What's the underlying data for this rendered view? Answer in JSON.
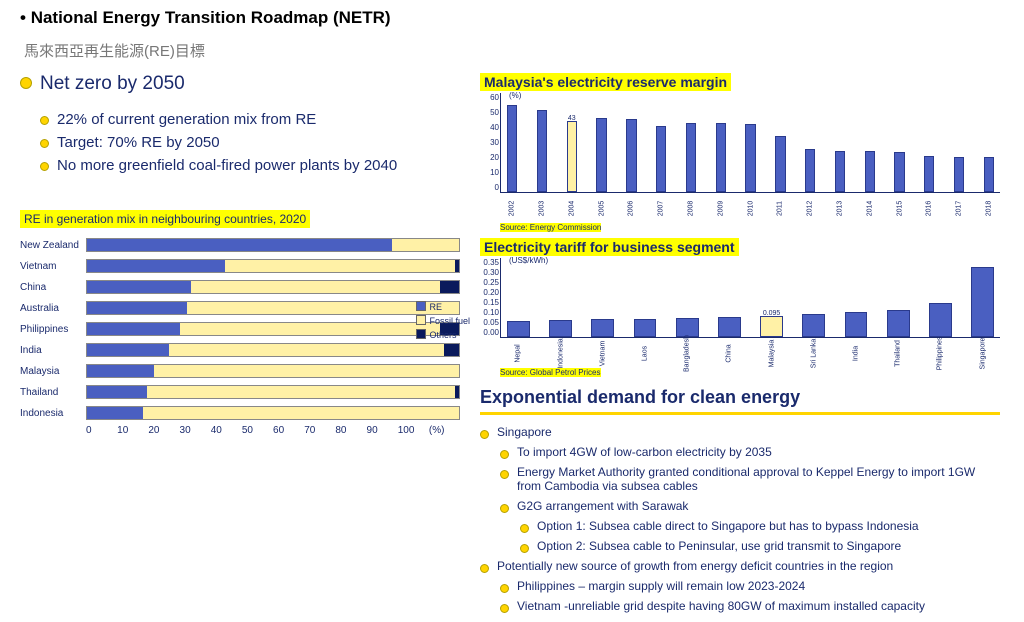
{
  "title": "National Energy Transition Roadmap (NETR)",
  "subtitle": "馬來西亞再生能源(RE)目標",
  "netzero": {
    "heading": "Net zero by 2050",
    "items": [
      "22% of current generation mix from RE",
      "Target: 70% RE by 2050",
      "No more greenfield coal-fired power plants by 2040"
    ]
  },
  "remix": {
    "title": "RE in generation mix in neighbouring countries, 2020",
    "categories": [
      "New Zealand",
      "Vietnam",
      "China",
      "Australia",
      "Philippines",
      "India",
      "Malaysia",
      "Thailand",
      "Indonesia"
    ],
    "re": [
      82,
      37,
      28,
      27,
      25,
      22,
      18,
      16,
      15
    ],
    "fossil": [
      18,
      62,
      67,
      73,
      70,
      74,
      82,
      83,
      85
    ],
    "others": [
      0,
      1,
      5,
      0,
      5,
      4,
      0,
      1,
      0
    ],
    "colors": {
      "re": "#4a5fc1",
      "fossil": "#fff1a6",
      "others": "#0a1a5c"
    },
    "xmax": 100,
    "xticks": [
      0,
      10,
      20,
      30,
      40,
      50,
      60,
      70,
      80,
      90,
      100
    ],
    "xunit": "(%)",
    "legend": [
      "RE",
      "Fossil fuel",
      "Others"
    ]
  },
  "reserve": {
    "title": "Malaysia's electricity reserve margin",
    "ylim": [
      0,
      60
    ],
    "yticks": [
      0,
      10,
      20,
      30,
      40,
      50,
      60
    ],
    "unit": "(%)",
    "xlabels": [
      "2002",
      "2003",
      "2004",
      "2005",
      "2006",
      "2007",
      "2008",
      "2009",
      "2010",
      "2011",
      "2012",
      "2013",
      "2014",
      "2015",
      "2016",
      "2017",
      "2018"
    ],
    "values": [
      53,
      50,
      43,
      45,
      44,
      40,
      42,
      42,
      41,
      34,
      26,
      25,
      25,
      24,
      22,
      21,
      21
    ],
    "highlight_index": 2,
    "highlight_label": "43",
    "bar_color": "#4a5fc1",
    "highlight_color": "#fff1a6",
    "source": "Source: Energy Commission"
  },
  "tariff": {
    "title": "Electricity tariff for business segment",
    "ylim": [
      0,
      0.35
    ],
    "yticks": [
      "0.00",
      "0.05",
      "0.10",
      "0.15",
      "0.20",
      "0.25",
      "0.30",
      "0.35"
    ],
    "unit": "(US$/kWh)",
    "xlabels": [
      "Nepal",
      "Indonesia",
      "Vietnam",
      "Laos",
      "Bangladesh",
      "China",
      "Malaysia",
      "Sri Lanka",
      "India",
      "Thailand",
      "Philippines",
      "Singapore"
    ],
    "values": [
      0.07,
      0.075,
      0.08,
      0.082,
      0.084,
      0.09,
      0.095,
      0.1,
      0.11,
      0.12,
      0.15,
      0.31
    ],
    "highlight_index": 6,
    "highlight_label": "0.095",
    "bar_color": "#4a5fc1",
    "highlight_color": "#fff1a6",
    "source": "Source: Global Petrol Prices"
  },
  "demand": {
    "heading": "Exponential demand for clean energy",
    "sg": {
      "title": "Singapore",
      "items": [
        "To import 4GW of low-carbon electricity by 2035",
        "Energy Market Authority granted conditional approval to Keppel Energy to import 1GW from Cambodia via subsea cables",
        "G2G arrangement with Sarawak"
      ],
      "options": [
        "Option 1: Subsea cable direct to Singapore but has to bypass Indonesia",
        "Option 2: Subsea cable to Peninsular, use grid transmit to Singapore"
      ]
    },
    "growth": {
      "title": "Potentially new source of growth from energy deficit countries in the region",
      "items": [
        "Philippines – margin supply will remain low 2023-2024",
        "Vietnam  -unreliable grid despite having 80GW of maximum installed capacity"
      ]
    }
  }
}
